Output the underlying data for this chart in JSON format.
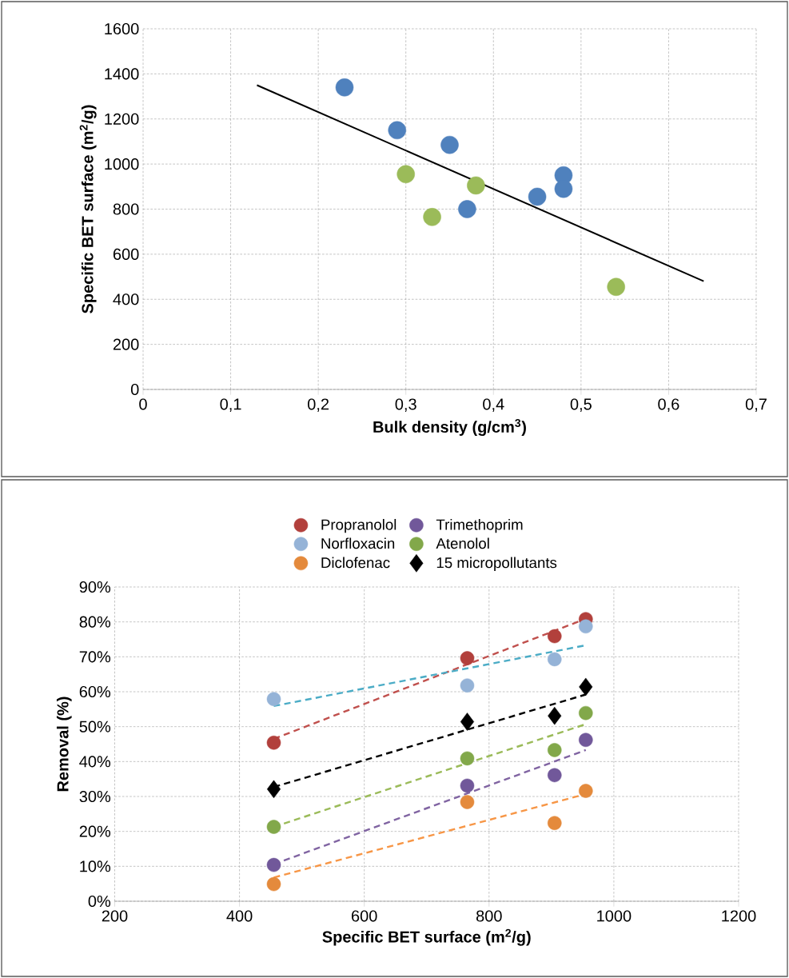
{
  "chart_data": [
    {
      "type": "scatter",
      "xlabel": "Bulk density (g/cm$^{3}$)",
      "ylabel": "Specific BET surface (m$^{2}$/g)",
      "xlim": [
        0,
        0.7
      ],
      "ylim": [
        0,
        1600
      ],
      "xticks": [
        0,
        {
          "value": 0.1,
          "label": "0,1"
        },
        {
          "value": 0.2,
          "label": "0,2"
        },
        {
          "value": 0.3,
          "label": "0,3"
        },
        {
          "value": 0.4,
          "label": "0,4"
        },
        {
          "value": 0.5,
          "label": "0,5"
        },
        {
          "value": 0.6,
          "label": "0,6"
        },
        {
          "value": 0.7,
          "label": "0,7"
        }
      ],
      "yticks": [
        0,
        200,
        400,
        600,
        800,
        1000,
        1200,
        1400,
        1600
      ],
      "grid": true,
      "legend": false,
      "series": [
        {
          "marker": "circle",
          "color": "#4f81bd",
          "x": [
            0.23,
            0.29,
            0.35,
            0.37,
            0.45,
            0.48,
            0.48
          ],
          "values": [
            1340,
            1150,
            1085,
            800,
            855,
            950,
            890
          ]
        },
        {
          "marker": "circle",
          "color": "#9bbb59",
          "x": [
            0.3,
            0.38,
            0.33,
            0.54
          ],
          "values": [
            955,
            905,
            765,
            455
          ]
        },
        {
          "type": "line",
          "marker": "none",
          "color": "#000000",
          "line_style": "solid",
          "x": [
            0.13,
            0.64
          ],
          "values": [
            1350,
            480
          ]
        }
      ]
    },
    {
      "type": "scatter",
      "xlabel": "Specific BET surface (m$^{2}$/g)",
      "ylabel": "Removal (%)",
      "xlim": [
        200,
        1200
      ],
      "ylim": [
        0,
        90
      ],
      "xticks": [
        200,
        400,
        600,
        800,
        1000,
        1200
      ],
      "yticks": [
        {
          "value": 0,
          "label": "0%"
        },
        {
          "value": 10,
          "label": "10%"
        },
        {
          "value": 20,
          "label": "20%"
        },
        {
          "value": 30,
          "label": "30%"
        },
        {
          "value": 40,
          "label": "40%"
        },
        {
          "value": 50,
          "label": "50%"
        },
        {
          "value": 60,
          "label": "60%"
        },
        {
          "value": 70,
          "label": "70%"
        },
        {
          "value": 80,
          "label": "80%"
        },
        {
          "value": 90,
          "label": "90%"
        }
      ],
      "grid": true,
      "legend": "top",
      "series": [
        {
          "marker": "circle",
          "name": "Propranolol",
          "color": "#b2403c",
          "x": [
            455,
            765,
            905,
            955
          ],
          "values": [
            45.4,
            69.6,
            75.9,
            80.8
          ]
        },
        {
          "marker": "circle",
          "name": "Trimethoprim",
          "color": "#71589a",
          "x": [
            455,
            765,
            905,
            955
          ],
          "values": [
            10.4,
            33.1,
            36.1,
            46.2
          ]
        },
        {
          "marker": "circle",
          "name": "Norfloxacin",
          "color": "#95b3d7",
          "x": [
            455,
            765,
            905,
            955
          ],
          "values": [
            57.9,
            61.8,
            69.3,
            78.7
          ]
        },
        {
          "marker": "circle",
          "name": "Atenolol",
          "color": "#82a84a",
          "x": [
            455,
            765,
            905,
            955
          ],
          "values": [
            21.3,
            40.9,
            43.3,
            53.9
          ]
        },
        {
          "marker": "circle",
          "name": "Diclofenac",
          "color": "#e48a3c",
          "x": [
            455,
            765,
            905,
            955
          ],
          "values": [
            4.9,
            28.4,
            22.4,
            31.6
          ]
        },
        {
          "name": "15 micropollutants",
          "color": "#000000",
          "marker": "diamond",
          "x": [
            455,
            765,
            905,
            955
          ],
          "values": [
            32.1,
            51.4,
            53.1,
            61.4
          ]
        },
        {
          "type": "line",
          "marker": "none",
          "color": "#c0504d",
          "line_style": "dashed",
          "x": [
            455,
            955
          ],
          "values": [
            46.5,
            80.9
          ]
        },
        {
          "type": "line",
          "marker": "none",
          "color": "#4bacc6",
          "line_style": "dashed",
          "x": [
            455,
            955
          ],
          "values": [
            55.9,
            73.3
          ]
        },
        {
          "type": "line",
          "marker": "none",
          "color": "#000000",
          "line_style": "dashed",
          "x": [
            455,
            955
          ],
          "values": [
            32.7,
            59.2
          ]
        },
        {
          "type": "line",
          "marker": "none",
          "color": "#9bbb59",
          "line_style": "dashed",
          "x": [
            455,
            955
          ],
          "values": [
            21.3,
            50.7
          ]
        },
        {
          "type": "line",
          "marker": "none",
          "color": "#8064a2",
          "line_style": "dashed",
          "x": [
            455,
            955
          ],
          "values": [
            10.6,
            43.3
          ]
        },
        {
          "type": "line",
          "marker": "none",
          "color": "#f79646",
          "line_style": "dashed",
          "x": [
            455,
            955
          ],
          "values": [
            6.8,
            30.7
          ]
        }
      ]
    }
  ]
}
